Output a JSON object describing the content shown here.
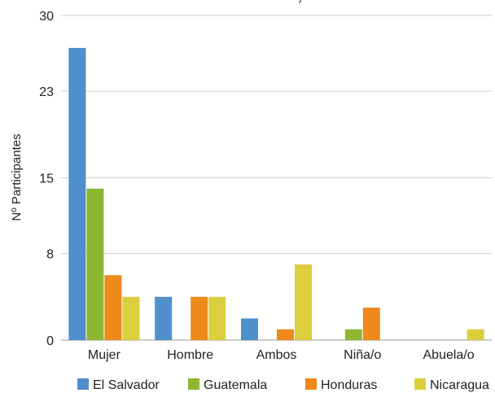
{
  "chart_data": {
    "type": "bar",
    "title": "/",
    "ylabel": "Nº Participantes",
    "xlabel": "",
    "categories": [
      "Mujer",
      "Hombre",
      "Ambos",
      "Niña/o",
      "Abuela/o"
    ],
    "yticks": [
      "0",
      "8",
      "15",
      "23",
      "30"
    ],
    "ylim": [
      0,
      30
    ],
    "grid": true,
    "legend_position": "bottom",
    "series": [
      {
        "name": "El Salvador",
        "color": "#4f8fcc",
        "values": [
          27,
          4,
          2,
          0,
          0
        ]
      },
      {
        "name": "Guatemala",
        "color": "#8db733",
        "values": [
          14,
          0,
          0,
          1,
          0
        ]
      },
      {
        "name": "Honduras",
        "color": "#ee8a1a",
        "values": [
          6,
          4,
          1,
          3,
          0
        ]
      },
      {
        "name": "Nicaragua",
        "color": "#dccf3e",
        "values": [
          4,
          4,
          7,
          0,
          1
        ]
      }
    ]
  }
}
